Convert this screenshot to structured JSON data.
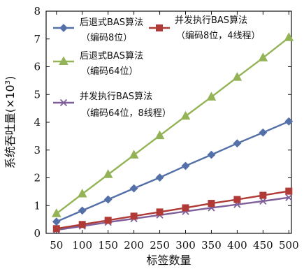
{
  "chart_data": {
    "type": "line",
    "xlabel": "标签数量",
    "ylabel": "系统吞吐量(×10³)",
    "ylabel_parts": [
      "系统吞吐量",
      "(×10",
      "3",
      ")"
    ],
    "x": [
      50,
      100,
      150,
      200,
      250,
      300,
      350,
      400,
      450,
      500
    ],
    "xlim": [
      30,
      505
    ],
    "ylim": [
      0,
      8
    ],
    "yticks": [
      0,
      1,
      2,
      3,
      4,
      5,
      6,
      7,
      8
    ],
    "grid": false,
    "legend_position": "left inside plot area, stacked",
    "series": [
      {
        "name_line1": "后退式BAS算法",
        "name_line2": "（编码8位）",
        "color": "#5470a8",
        "marker": "diamond",
        "values": [
          0.42,
          0.82,
          1.22,
          1.62,
          2.01,
          2.43,
          2.83,
          3.24,
          3.63,
          4.03
        ]
      },
      {
        "name_line1": "并发执行BAS算法",
        "name_line2": "（编码8位，4线程）",
        "color": "#b03a36",
        "marker": "square",
        "values": [
          0.17,
          0.32,
          0.47,
          0.62,
          0.77,
          0.92,
          1.08,
          1.22,
          1.37,
          1.52
        ]
      },
      {
        "name_line1": "后退式BAS算法",
        "name_line2": "（编码64位）",
        "color": "#94b356",
        "marker": "triangle",
        "values": [
          0.71,
          1.42,
          2.12,
          2.82,
          3.52,
          4.22,
          4.91,
          5.62,
          6.32,
          7.05
        ]
      },
      {
        "name_line1": "并发执行BAS算法",
        "name_line2": "（编码64位，8线程）",
        "color": "#7e5f9a",
        "marker": "x",
        "values": [
          0.12,
          0.26,
          0.4,
          0.53,
          0.66,
          0.79,
          0.92,
          1.04,
          1.16,
          1.29
        ]
      }
    ]
  }
}
